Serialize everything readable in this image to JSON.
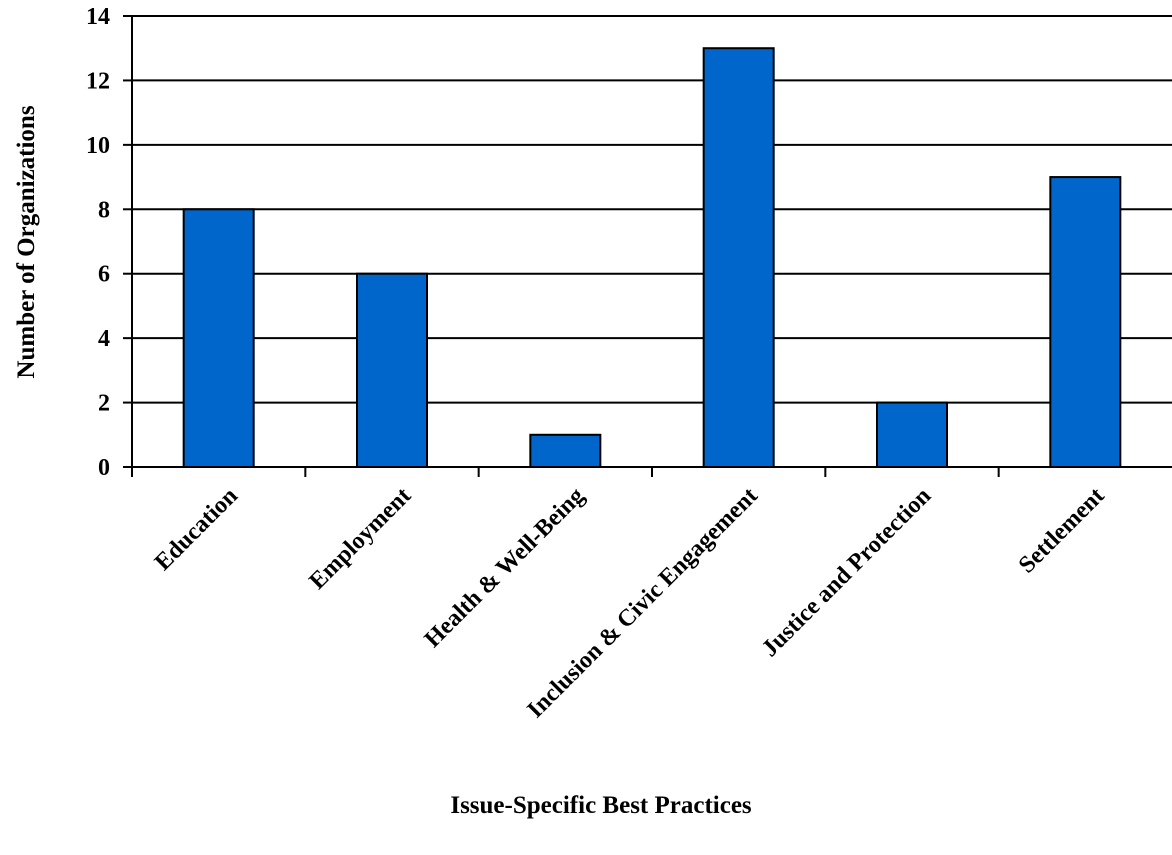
{
  "chart_data": {
    "type": "bar",
    "title": "",
    "xlabel": "Issue-Specific Best Practices",
    "ylabel": "Number of Organizations",
    "categories": [
      "Education",
      "Employment",
      "Health & Well-Being",
      "Inclusion & Civic Engagement",
      "Justice and Protection",
      "Settlement"
    ],
    "values": [
      8,
      6,
      1,
      13,
      2,
      9
    ],
    "ylim": [
      0,
      14
    ],
    "yticks": [
      "0",
      "2",
      "4",
      "6",
      "8",
      "10",
      "12",
      "14"
    ],
    "grid": true,
    "legend": "none",
    "colors": {
      "bar_fill": "#0066cc",
      "bar_stroke": "#000000",
      "grid": "#000000",
      "axis": "#000000"
    }
  }
}
